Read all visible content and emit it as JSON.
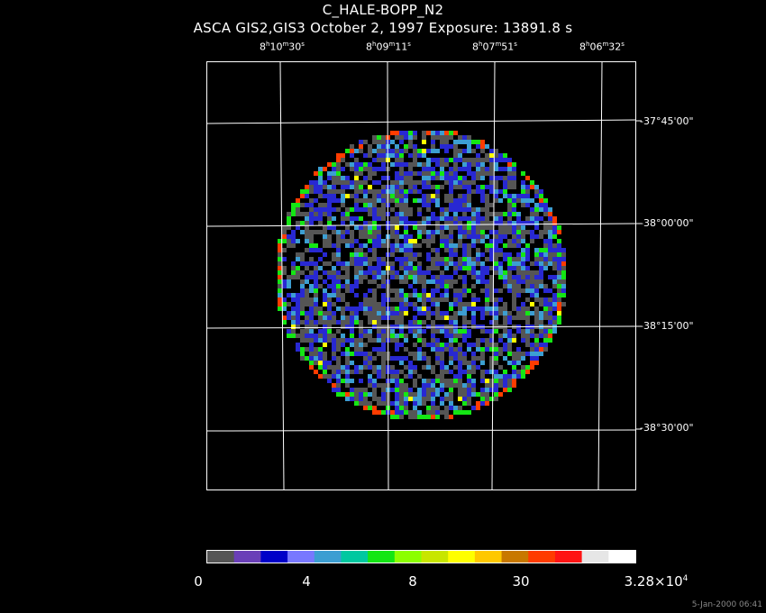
{
  "title": "C_HALE-BOPP_N2",
  "subtitle": "ASCA GIS2,GIS3 October 2, 1997 Exposure: 13891.8 s",
  "ra_axis": [
    {
      "h": "8",
      "m": "10",
      "s": "30"
    },
    {
      "h": "8",
      "m": "09",
      "s": "11"
    },
    {
      "h": "8",
      "m": "07",
      "s": "51"
    },
    {
      "h": "8",
      "m": "06",
      "s": "32"
    }
  ],
  "dec_axis": [
    "-37°45'00\"",
    "-38°00'00\"",
    "-38°15'00\"",
    "-38°30'00\""
  ],
  "colorbar": {
    "labels": [
      "0",
      "4",
      "8",
      "30"
    ],
    "max_mantissa": "3.28×10",
    "max_exp": "4",
    "colors": [
      "#555555",
      "#6a3fb8",
      "#0000c8",
      "#7878ff",
      "#3c9ed2",
      "#00c8a0",
      "#14e614",
      "#8cff00",
      "#c8e600",
      "#ffff00",
      "#ffc800",
      "#c87800",
      "#ff3c00",
      "#ff1414",
      "#e6e6e6",
      "#ffffff"
    ]
  },
  "image_colors": {
    "background": "#000000",
    "low": "#555555",
    "mid": "#2828d2",
    "high_mid": "#3c9ed2",
    "high": "#14e614",
    "peak": "#ffff00",
    "grid": "#ffffff"
  },
  "timestamp": "5-Jan-2000 06:41"
}
